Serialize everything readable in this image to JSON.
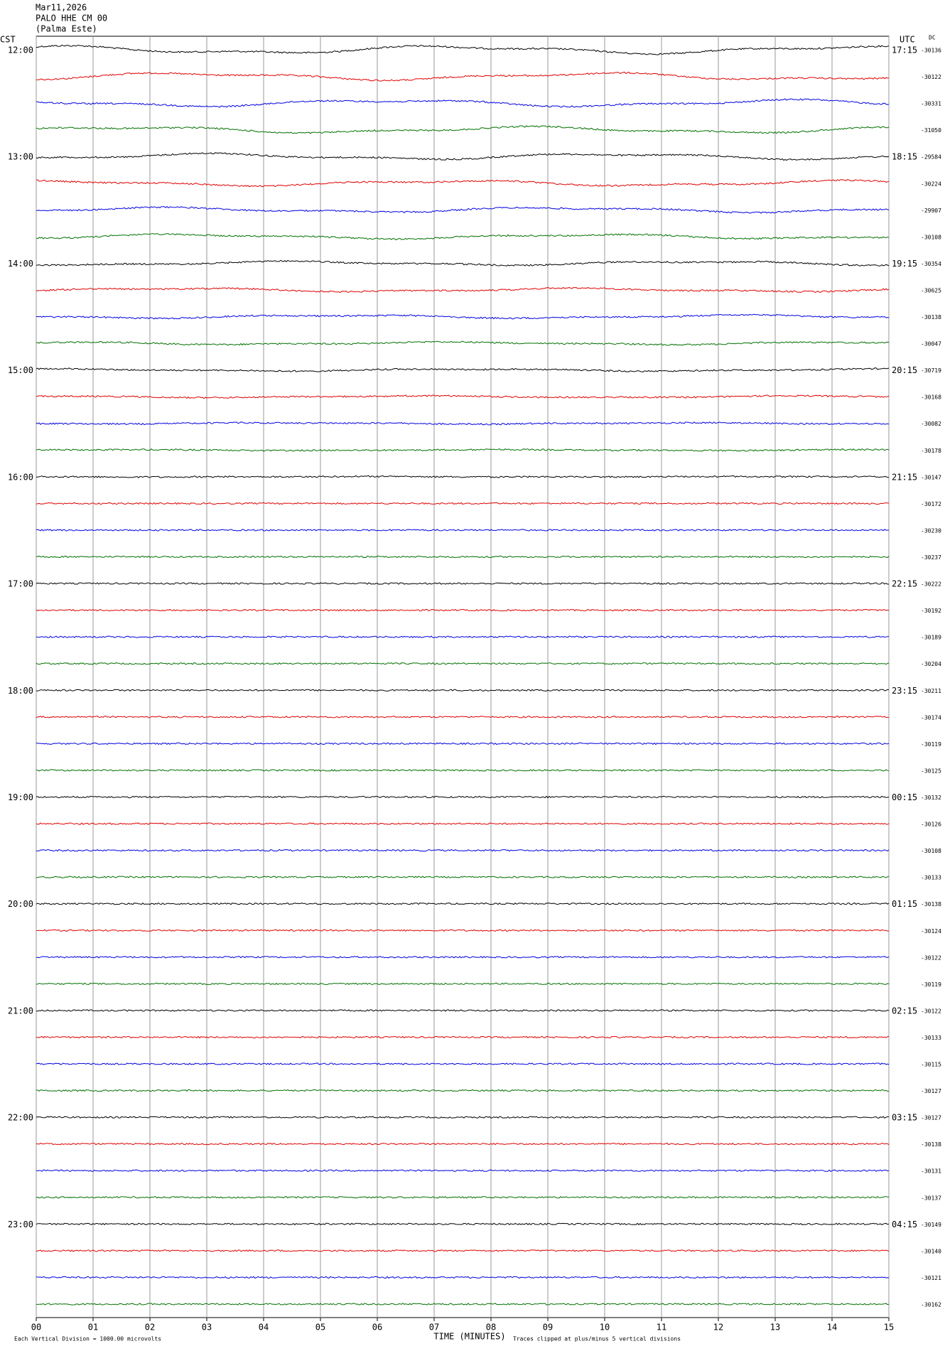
{
  "header": {
    "date": "Mar11,2026",
    "station": "PALO HHE CM 00",
    "location": "(Palma Este)"
  },
  "chart_data": {
    "type": "helicorder",
    "left_axis_label": "CST",
    "right_axis_label": "UTC",
    "dc_label": "DC",
    "hour_labels_local": [
      "12:00",
      "13:00",
      "14:00",
      "15:00",
      "16:00",
      "17:00",
      "18:00",
      "19:00",
      "20:00",
      "21:00",
      "22:00",
      "23:00"
    ],
    "hour_labels_utc": [
      "17:15",
      "18:15",
      "19:15",
      "20:15",
      "21:15",
      "22:15",
      "23:15",
      "00:15",
      "01:15",
      "02:15",
      "03:15",
      "04:15"
    ],
    "dc_values": [
      -30136,
      -30122,
      -30331,
      -31050,
      -29584,
      -30224,
      -29907,
      -30108,
      -30354,
      -30625,
      -30138,
      -30047,
      -30719,
      -30168,
      -30082,
      -30178,
      -30147,
      -30172,
      -30230,
      -30237,
      -30222,
      -30192,
      -30189,
      -30204,
      -30211,
      -30174,
      -30119,
      -30125,
      -30132,
      -30126,
      -30108,
      -30133,
      -30138,
      -30124,
      -30122,
      -30119,
      -30122,
      -30133,
      -30115,
      -30127,
      -30127,
      -30138,
      -30131,
      -30137,
      -30149,
      -30140,
      -30121,
      -30162
    ],
    "trace_colors": [
      "#000000",
      "#e00000",
      "#0000e0",
      "#007000"
    ],
    "xlim": [
      0,
      15
    ],
    "xticks": [
      {
        "value": 0,
        "label": "00"
      },
      {
        "value": 1,
        "label": "01"
      },
      {
        "value": 2,
        "label": "02"
      },
      {
        "value": 3,
        "label": "03"
      },
      {
        "value": 4,
        "label": "04"
      },
      {
        "value": 5,
        "label": "05"
      },
      {
        "value": 6,
        "label": "06"
      },
      {
        "value": 7,
        "label": "07"
      },
      {
        "value": 8,
        "label": "08"
      },
      {
        "value": 9,
        "label": "09"
      },
      {
        "value": 10,
        "label": "10"
      },
      {
        "value": 11,
        "label": "11"
      },
      {
        "value": 12,
        "label": "12"
      },
      {
        "value": 13,
        "label": "13"
      },
      {
        "value": 14,
        "label": "14"
      },
      {
        "value": 15,
        "label": "15"
      }
    ],
    "xlabel": "TIME (MINUTES)",
    "grid": true
  },
  "footer": {
    "scale_note": "Each Vertical Division = 1000.00 microvolts",
    "clip_note": "Traces clipped at plus/minus 5 vertical divisions"
  }
}
